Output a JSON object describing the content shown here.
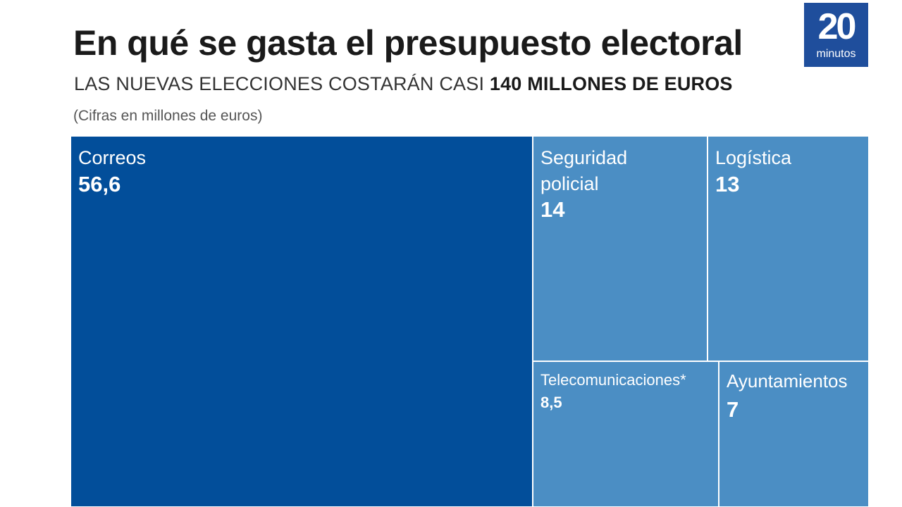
{
  "header": {
    "title": "En qué se gasta el presupuesto electoral",
    "subtitle_prefix": "LAS NUEVAS ELECCIONES COSTARÁN CASI ",
    "subtitle_bold": "140 MILLONES DE EUROS",
    "note": "(Cifras en millones de euros)"
  },
  "logo": {
    "number": "20",
    "word": "minutos",
    "color": "#1f4e9c"
  },
  "colors": {
    "primary_tile": "#024e9a",
    "secondary_tile": "#4b8ec4",
    "tile_border": "#ffffff"
  },
  "chart_data": {
    "type": "treemap",
    "title": "En qué se gasta el presupuesto electoral",
    "unit": "millones de euros",
    "items": [
      {
        "label": "Correos",
        "value_label": "56,6",
        "value": 56.6
      },
      {
        "label": "Seguridad\npolicial",
        "value_label": "14",
        "value": 14
      },
      {
        "label": "Logística",
        "value_label": "13",
        "value": 13
      },
      {
        "label": "Telecomunicaciones*",
        "value_label": "8,5",
        "value": 8.5
      },
      {
        "label": "Ayuntamientos",
        "value_label": "7",
        "value": 7
      }
    ]
  }
}
